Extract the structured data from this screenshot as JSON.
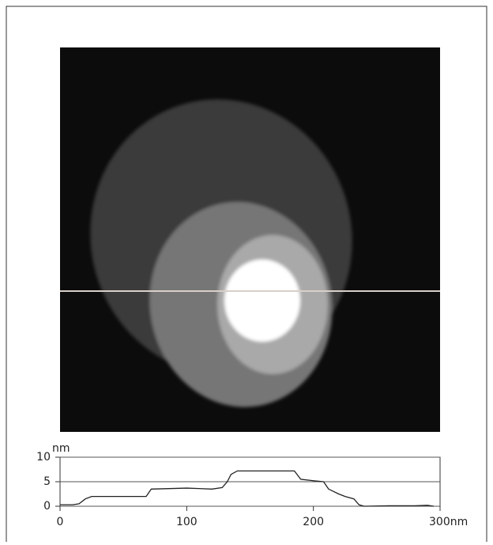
{
  "chart_data": {
    "type": "line",
    "y_label": "nm",
    "x": [
      0,
      10,
      15,
      20,
      25,
      40,
      60,
      68,
      72,
      100,
      120,
      128,
      132,
      135,
      140,
      160,
      185,
      190,
      200,
      208,
      212,
      220,
      225,
      232,
      236,
      240,
      260,
      280,
      290,
      295
    ],
    "series": [
      {
        "color": "#222222",
        "values": [
          0.3,
          0.3,
          0.5,
          1.5,
          2,
          2,
          2,
          2,
          3.5,
          3.7,
          3.5,
          3.8,
          5,
          6.5,
          7.2,
          7.2,
          7.2,
          5.5,
          5.2,
          5,
          3.5,
          2.5,
          2,
          1.5,
          0.3,
          0,
          0.1,
          0.1,
          0.2,
          0
        ]
      }
    ],
    "xlim": [
      0,
      300
    ],
    "xticks": [
      0,
      100,
      200,
      {
        "value": 300,
        "label": "300nm"
      }
    ],
    "ylim": [
      0,
      10
    ],
    "yticks": [
      0,
      5,
      10
    ],
    "grid": true
  }
}
